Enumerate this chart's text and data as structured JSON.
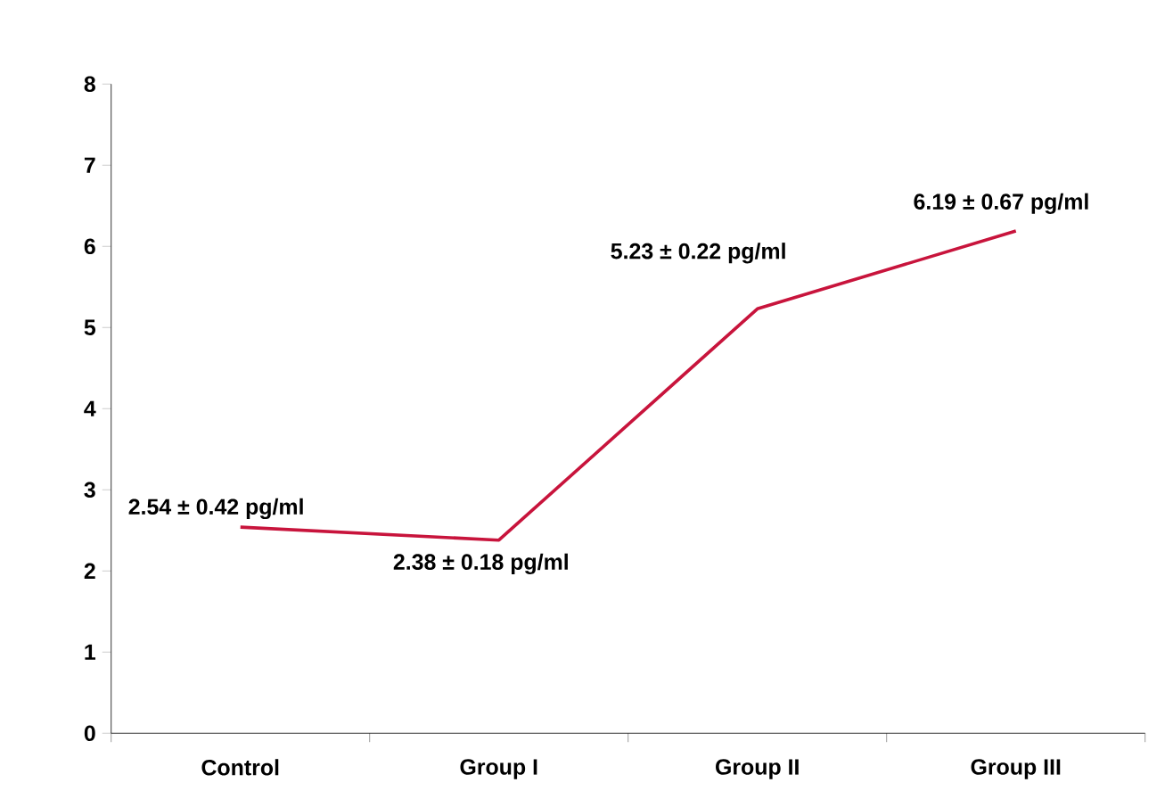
{
  "chart_data": {
    "type": "line",
    "categories": [
      "Control",
      "Group I",
      "Group II",
      "Group III"
    ],
    "values": [
      2.54,
      2.38,
      5.23,
      6.19
    ],
    "value_labels": [
      "2.54 ± 0.42 pg/ml",
      "2.38 ± 0.18 pg/ml",
      "5.23 ± 0.22 pg/ml",
      "6.19 ± 0.67 pg/ml"
    ],
    "color": "#c8143c",
    "ylim": [
      0,
      8
    ],
    "yticks": [
      0,
      1,
      2,
      3,
      4,
      5,
      6,
      7,
      8
    ],
    "grid": false,
    "marker": "none",
    "line_style": "solid"
  }
}
